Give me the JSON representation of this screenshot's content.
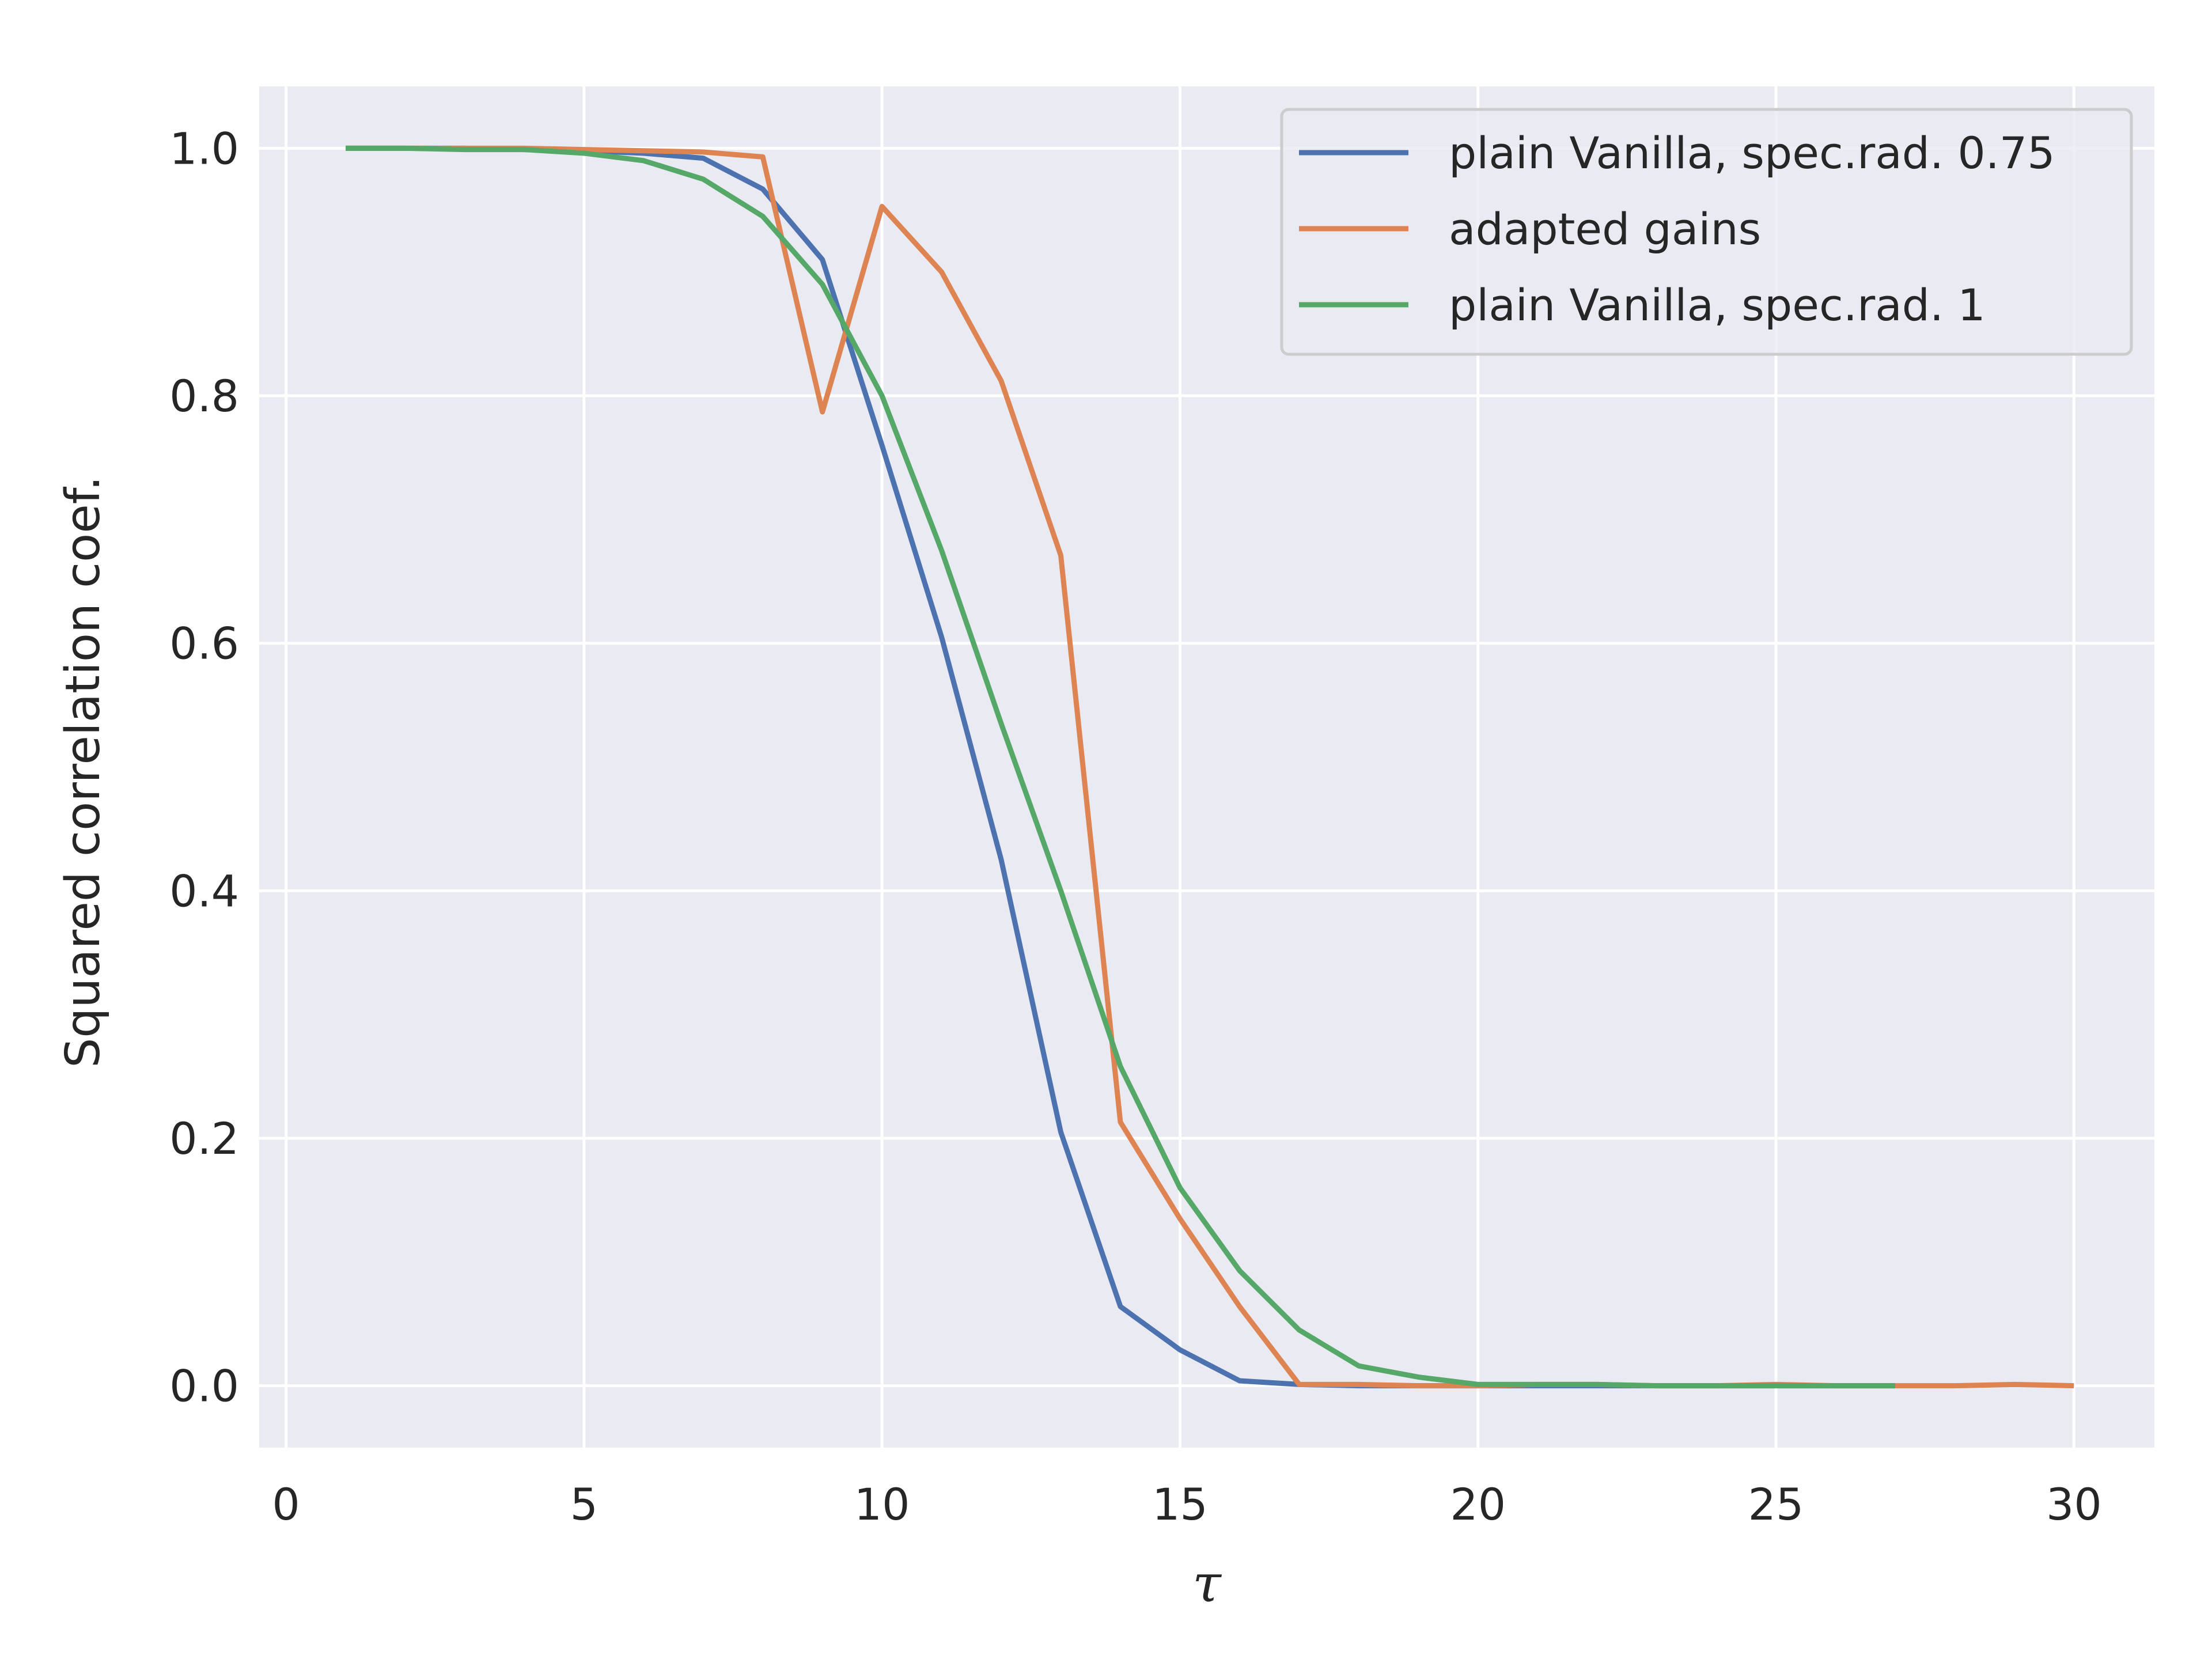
{
  "chart_data": {
    "type": "line",
    "title": "",
    "xlabel": "τ",
    "ylabel": "Squared correlation coef.",
    "xlim": [
      -0.45,
      31.35
    ],
    "ylim": [
      -0.05,
      1.05
    ],
    "xticks": [
      0,
      5,
      10,
      15,
      20,
      25,
      30
    ],
    "xtick_labels": [
      "0",
      "5",
      "10",
      "15",
      "20",
      "25",
      "30"
    ],
    "yticks": [
      0.0,
      0.2,
      0.4,
      0.6,
      0.8,
      1.0
    ],
    "ytick_labels": [
      "0.0",
      "0.2",
      "0.4",
      "0.6",
      "0.8",
      "1.0"
    ],
    "grid": true,
    "legend_position": "top-right",
    "background": "#EAEAF2",
    "series": [
      {
        "name": "plain Vanilla, spec.rad. 0.75",
        "color": "#4C72B0",
        "x": [
          1,
          2,
          3,
          4,
          5,
          6,
          7,
          8,
          9,
          10,
          11,
          12,
          13,
          14,
          15,
          16,
          17,
          18,
          19,
          20,
          21,
          22,
          23,
          24,
          25,
          26,
          27
        ],
        "y": [
          1.0,
          1.0,
          1.0,
          0.999,
          0.998,
          0.996,
          0.992,
          0.967,
          0.91,
          0.76,
          0.605,
          0.425,
          0.205,
          0.064,
          0.029,
          0.004,
          0.001,
          0.0,
          0.0,
          0.0,
          0.0,
          0.0,
          0.0,
          0.0,
          0.0,
          0.0,
          0.0
        ]
      },
      {
        "name": "adapted gains",
        "color": "#DD8452",
        "x": [
          1,
          2,
          3,
          4,
          5,
          6,
          7,
          8,
          9,
          10,
          11,
          12,
          13,
          14,
          15,
          16,
          17,
          18,
          19,
          20,
          21,
          22,
          23,
          24,
          25,
          26,
          27,
          28,
          29,
          30
        ],
        "y": [
          1.0,
          1.0,
          1.0,
          1.0,
          0.999,
          0.998,
          0.997,
          0.993,
          0.787,
          0.953,
          0.9,
          0.812,
          0.671,
          0.213,
          0.135,
          0.064,
          0.001,
          0.001,
          0.0,
          0.0,
          0.001,
          0.001,
          0.0,
          0.0,
          0.001,
          0.0,
          0.0,
          0.0,
          0.001,
          0.0
        ]
      },
      {
        "name": "plain Vanilla, spec.rad. 1",
        "color": "#55A868",
        "x": [
          1,
          2,
          3,
          4,
          5,
          6,
          7,
          8,
          9,
          10,
          11,
          12,
          13,
          14,
          15,
          16,
          17,
          18,
          19,
          20,
          21,
          22,
          23,
          24,
          25,
          26,
          27
        ],
        "y": [
          1.0,
          1.0,
          0.999,
          0.999,
          0.996,
          0.99,
          0.975,
          0.945,
          0.89,
          0.8,
          0.675,
          0.535,
          0.4,
          0.258,
          0.16,
          0.093,
          0.045,
          0.016,
          0.007,
          0.001,
          0.001,
          0.001,
          0.0,
          0.0,
          0.0,
          0.0,
          0.0
        ]
      }
    ]
  }
}
